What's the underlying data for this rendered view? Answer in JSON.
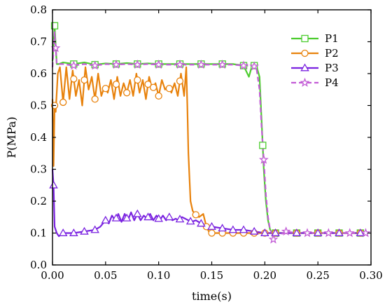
{
  "chart_data": {
    "type": "line",
    "title": "",
    "xlabel": "time(s)",
    "ylabel": "P(MPa)",
    "xlim": [
      0,
      0.3
    ],
    "ylim": [
      0,
      0.8
    ],
    "xticks": [
      "0.00",
      "0.05",
      "0.10",
      "0.15",
      "0.20",
      "0.25",
      "0.30"
    ],
    "yticks": [
      "0.0",
      "0.1",
      "0.2",
      "0.3",
      "0.4",
      "0.5",
      "0.6",
      "0.7",
      "0.8"
    ],
    "grid": false,
    "legend_position": "top-right",
    "series": [
      {
        "name": "P1",
        "color": "#4ccc2e",
        "marker": "square",
        "dash": "solid",
        "x": [
          0.0,
          0.002,
          0.004,
          0.006,
          0.01,
          0.02,
          0.03,
          0.04,
          0.05,
          0.06,
          0.07,
          0.08,
          0.09,
          0.1,
          0.11,
          0.12,
          0.13,
          0.14,
          0.15,
          0.16,
          0.17,
          0.18,
          0.185,
          0.188,
          0.192,
          0.195,
          0.197,
          0.199,
          0.201,
          0.203,
          0.205,
          0.207,
          0.21,
          0.22,
          0.23,
          0.24,
          0.25,
          0.26,
          0.27,
          0.28,
          0.29,
          0.295
        ],
        "y": [
          0.64,
          0.75,
          0.63,
          0.63,
          0.635,
          0.63,
          0.635,
          0.628,
          0.632,
          0.63,
          0.633,
          0.63,
          0.632,
          0.63,
          0.63,
          0.63,
          0.63,
          0.63,
          0.63,
          0.63,
          0.63,
          0.625,
          0.59,
          0.625,
          0.625,
          0.59,
          0.45,
          0.3,
          0.2,
          0.14,
          0.11,
          0.1,
          0.1,
          0.1,
          0.1,
          0.1,
          0.1,
          0.1,
          0.1,
          0.1,
          0.1,
          0.1
        ],
        "marker_x": [
          0.002,
          0.02,
          0.04,
          0.06,
          0.08,
          0.1,
          0.12,
          0.14,
          0.16,
          0.18,
          0.19,
          0.198,
          0.21,
          0.23,
          0.25,
          0.27,
          0.29
        ]
      },
      {
        "name": "P2",
        "color": "#e8820c",
        "marker": "circle",
        "dash": "solid",
        "x": [
          0.0,
          0.001,
          0.002,
          0.003,
          0.005,
          0.007,
          0.01,
          0.013,
          0.016,
          0.019,
          0.022,
          0.025,
          0.028,
          0.031,
          0.034,
          0.037,
          0.04,
          0.043,
          0.046,
          0.049,
          0.052,
          0.055,
          0.058,
          0.061,
          0.064,
          0.067,
          0.07,
          0.073,
          0.076,
          0.079,
          0.082,
          0.085,
          0.088,
          0.091,
          0.094,
          0.097,
          0.1,
          0.103,
          0.106,
          0.109,
          0.112,
          0.115,
          0.118,
          0.121,
          0.124,
          0.126,
          0.127,
          0.128,
          0.13,
          0.132,
          0.134,
          0.138,
          0.142,
          0.145,
          0.148,
          0.152,
          0.16,
          0.17,
          0.18,
          0.19,
          0.2,
          0.21,
          0.22,
          0.23,
          0.24,
          0.25,
          0.26,
          0.27,
          0.28,
          0.29,
          0.295
        ],
        "y": [
          0.52,
          0.31,
          0.5,
          0.48,
          0.6,
          0.62,
          0.51,
          0.62,
          0.52,
          0.61,
          0.53,
          0.58,
          0.5,
          0.62,
          0.55,
          0.59,
          0.52,
          0.6,
          0.53,
          0.56,
          0.54,
          0.58,
          0.52,
          0.59,
          0.53,
          0.57,
          0.54,
          0.58,
          0.53,
          0.6,
          0.54,
          0.58,
          0.52,
          0.59,
          0.55,
          0.57,
          0.53,
          0.58,
          0.55,
          0.56,
          0.54,
          0.57,
          0.53,
          0.6,
          0.53,
          0.62,
          0.5,
          0.35,
          0.2,
          0.17,
          0.16,
          0.15,
          0.16,
          0.12,
          0.1,
          0.1,
          0.1,
          0.1,
          0.1,
          0.1,
          0.1,
          0.1,
          0.1,
          0.1,
          0.1,
          0.1,
          0.1,
          0.1,
          0.1,
          0.1,
          0.1
        ],
        "marker_x": [
          0.002,
          0.01,
          0.02,
          0.03,
          0.04,
          0.05,
          0.06,
          0.07,
          0.08,
          0.09,
          0.095,
          0.1,
          0.11,
          0.12,
          0.135,
          0.145,
          0.15,
          0.16,
          0.17,
          0.18,
          0.19,
          0.2,
          0.21,
          0.23,
          0.25,
          0.27,
          0.29
        ]
      },
      {
        "name": "P3",
        "color": "#7a22e0",
        "marker": "triangle",
        "dash": "solid",
        "x": [
          0.0,
          0.001,
          0.002,
          0.004,
          0.006,
          0.01,
          0.02,
          0.03,
          0.04,
          0.045,
          0.05,
          0.053,
          0.056,
          0.059,
          0.062,
          0.065,
          0.068,
          0.071,
          0.074,
          0.077,
          0.08,
          0.083,
          0.086,
          0.089,
          0.092,
          0.095,
          0.098,
          0.101,
          0.104,
          0.107,
          0.11,
          0.113,
          0.116,
          0.119,
          0.122,
          0.125,
          0.128,
          0.131,
          0.135,
          0.14,
          0.15,
          0.16,
          0.17,
          0.18,
          0.19,
          0.2,
          0.21,
          0.22,
          0.23,
          0.24,
          0.25,
          0.26,
          0.27,
          0.28,
          0.29,
          0.295
        ],
        "y": [
          0.3,
          0.25,
          0.12,
          0.1,
          0.09,
          0.1,
          0.1,
          0.105,
          0.11,
          0.12,
          0.14,
          0.13,
          0.155,
          0.14,
          0.16,
          0.135,
          0.16,
          0.14,
          0.165,
          0.14,
          0.16,
          0.14,
          0.155,
          0.145,
          0.16,
          0.14,
          0.155,
          0.14,
          0.155,
          0.14,
          0.15,
          0.14,
          0.145,
          0.14,
          0.15,
          0.145,
          0.14,
          0.135,
          0.14,
          0.13,
          0.12,
          0.115,
          0.11,
          0.11,
          0.105,
          0.1,
          0.1,
          0.1,
          0.1,
          0.1,
          0.1,
          0.1,
          0.1,
          0.1,
          0.1,
          0.1
        ],
        "marker_x": [
          0.001,
          0.01,
          0.02,
          0.03,
          0.04,
          0.05,
          0.06,
          0.07,
          0.08,
          0.09,
          0.1,
          0.11,
          0.12,
          0.13,
          0.14,
          0.15,
          0.16,
          0.17,
          0.18,
          0.19,
          0.2,
          0.21,
          0.23,
          0.25,
          0.27,
          0.29
        ]
      },
      {
        "name": "P4",
        "color": "#c25cd6",
        "marker": "star",
        "dash": "dashed",
        "x": [
          0.0,
          0.002,
          0.004,
          0.006,
          0.01,
          0.02,
          0.03,
          0.04,
          0.05,
          0.06,
          0.07,
          0.08,
          0.09,
          0.1,
          0.11,
          0.12,
          0.13,
          0.14,
          0.15,
          0.16,
          0.17,
          0.18,
          0.188,
          0.192,
          0.195,
          0.197,
          0.199,
          0.201,
          0.203,
          0.205,
          0.207,
          0.208,
          0.21,
          0.212,
          0.22,
          0.23,
          0.24,
          0.25,
          0.26,
          0.27,
          0.28,
          0.29,
          0.295
        ],
        "y": [
          0.62,
          0.73,
          0.63,
          0.63,
          0.63,
          0.625,
          0.63,
          0.625,
          0.63,
          0.628,
          0.63,
          0.628,
          0.63,
          0.628,
          0.628,
          0.628,
          0.628,
          0.628,
          0.628,
          0.628,
          0.628,
          0.625,
          0.625,
          0.62,
          0.55,
          0.43,
          0.33,
          0.22,
          0.15,
          0.11,
          0.1,
          0.08,
          0.11,
          0.09,
          0.105,
          0.1,
          0.1,
          0.1,
          0.1,
          0.1,
          0.1,
          0.1,
          0.1
        ],
        "marker_x": [
          0.003,
          0.02,
          0.04,
          0.06,
          0.08,
          0.1,
          0.12,
          0.14,
          0.16,
          0.18,
          0.19,
          0.199,
          0.208,
          0.22,
          0.24,
          0.26,
          0.28,
          0.295
        ]
      }
    ]
  }
}
